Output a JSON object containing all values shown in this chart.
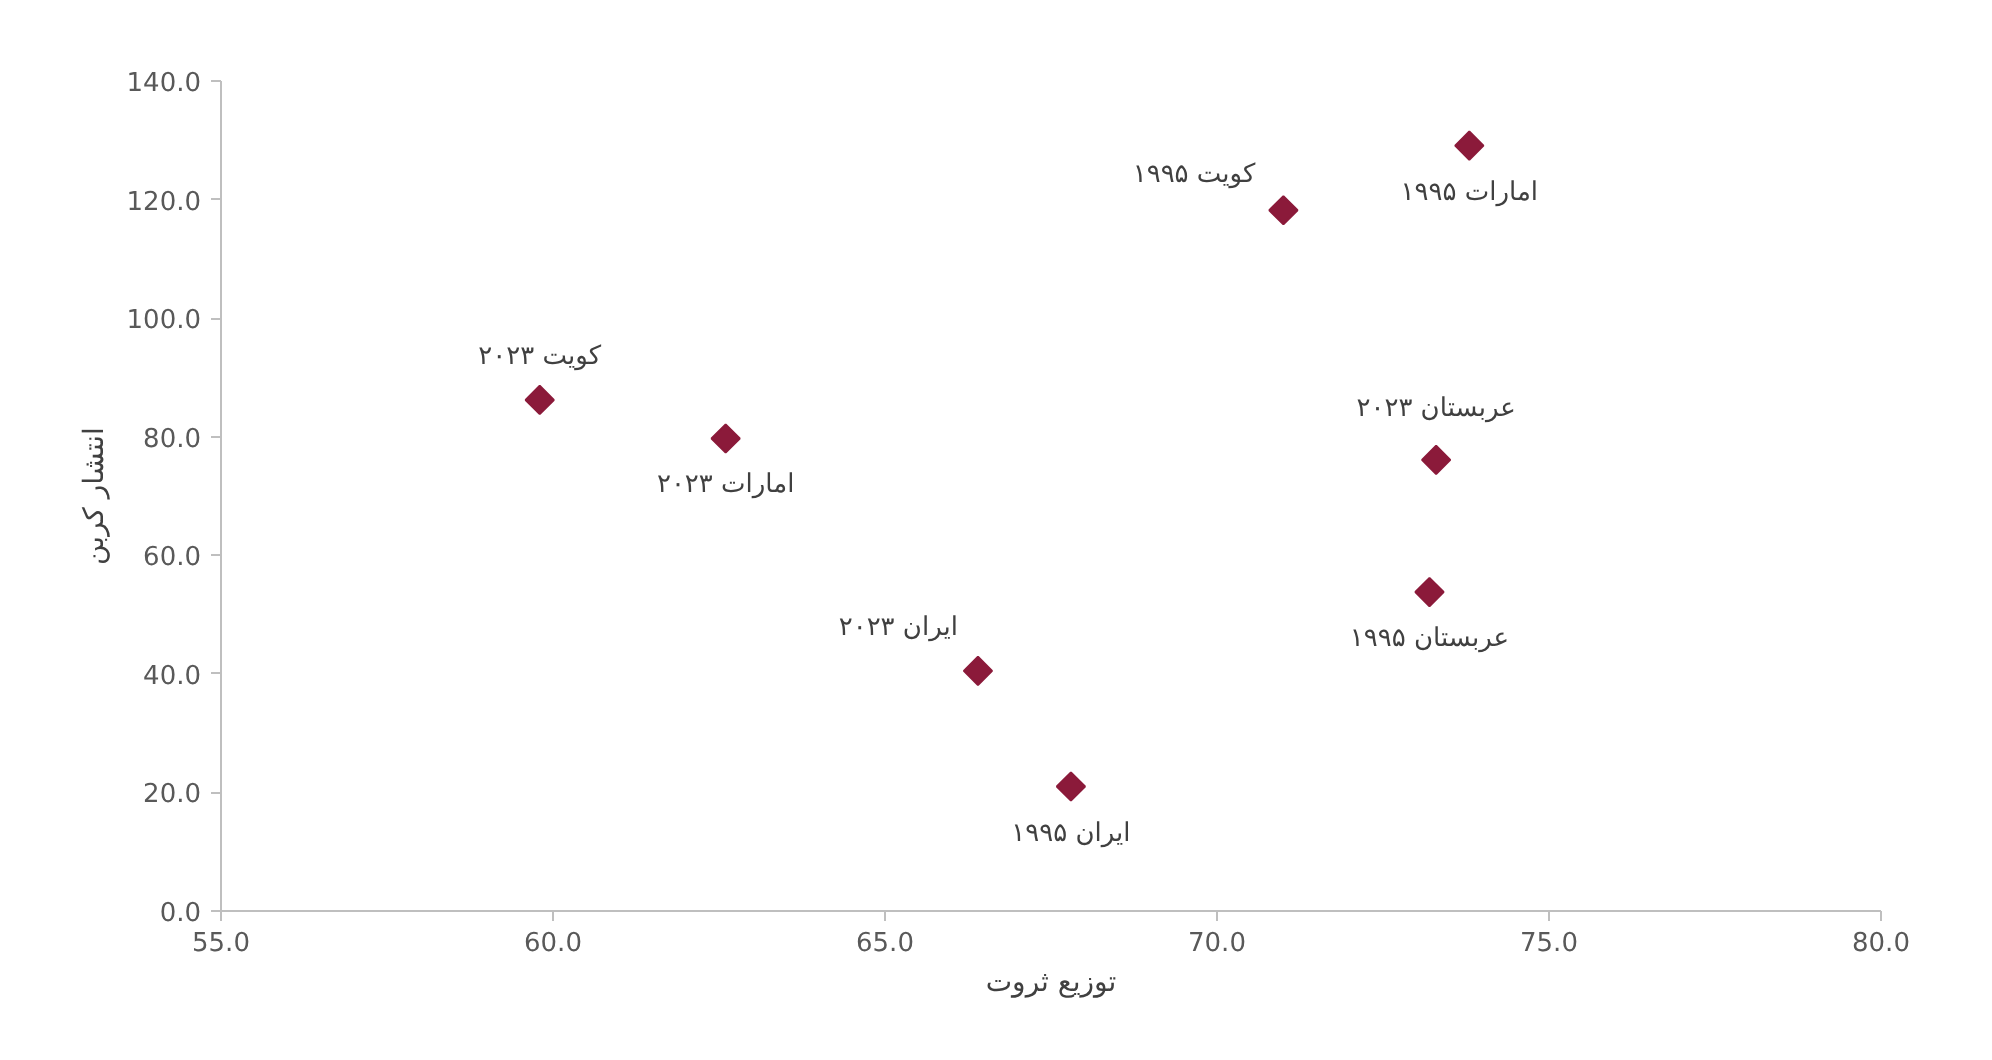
{
  "chart_data": {
    "type": "scatter",
    "xlabel": "توزیع ثروت",
    "ylabel": "انتشار کربن",
    "x": [
      59.8,
      62.6,
      66.4,
      67.8,
      71.0,
      73.8,
      73.3,
      73.2
    ],
    "series": [
      {
        "color": "#8b1a3a",
        "values": [
          86.2,
          79.7,
          40.5,
          21.0,
          118.2,
          129.1,
          76.1,
          53.8
        ]
      }
    ],
    "annotations": [
      {
        "text": "کویت ۲۰۲۳",
        "x": 59.8,
        "y": 86.2
      },
      {
        "text": "امارات ۲۰۲۳",
        "x": 62.6,
        "y": 79.7
      },
      {
        "text": "ایران ۲۰۲۳",
        "x": 66.4,
        "y": 40.5
      },
      {
        "text": "ایران ۱۹۹۵",
        "x": 67.8,
        "y": 21.0
      },
      {
        "text": "کویت ۱۹۹۵",
        "x": 71.0,
        "y": 118.2
      },
      {
        "text": "امارات ۱۹۹۵",
        "x": 73.8,
        "y": 129.1
      },
      {
        "text": "عربستان ۲۰۲۳",
        "x": 73.3,
        "y": 76.1
      },
      {
        "text": "عربستان ۱۹۹۵",
        "x": 73.2,
        "y": 53.8
      }
    ],
    "xlim": [
      55,
      80
    ],
    "ylim": [
      0,
      140
    ],
    "xticks": [
      {
        "value": 55,
        "label": "55.0"
      },
      {
        "value": 60,
        "label": "60.0"
      },
      {
        "value": 65,
        "label": "65.0"
      },
      {
        "value": 70,
        "label": "70.0"
      },
      {
        "value": 75,
        "label": "75.0"
      },
      {
        "value": 80,
        "label": "80.0"
      }
    ],
    "yticks": [
      {
        "value": 0,
        "label": "0.0"
      },
      {
        "value": 20,
        "label": "20.0"
      },
      {
        "value": 40,
        "label": "40.0"
      },
      {
        "value": 60,
        "label": "60.0"
      },
      {
        "value": 80,
        "label": "80.0"
      },
      {
        "value": 100,
        "label": "100.0"
      },
      {
        "value": 120,
        "label": "120.0"
      },
      {
        "value": 140,
        "label": "140.0"
      }
    ],
    "marker": "diamond",
    "grid": false
  }
}
